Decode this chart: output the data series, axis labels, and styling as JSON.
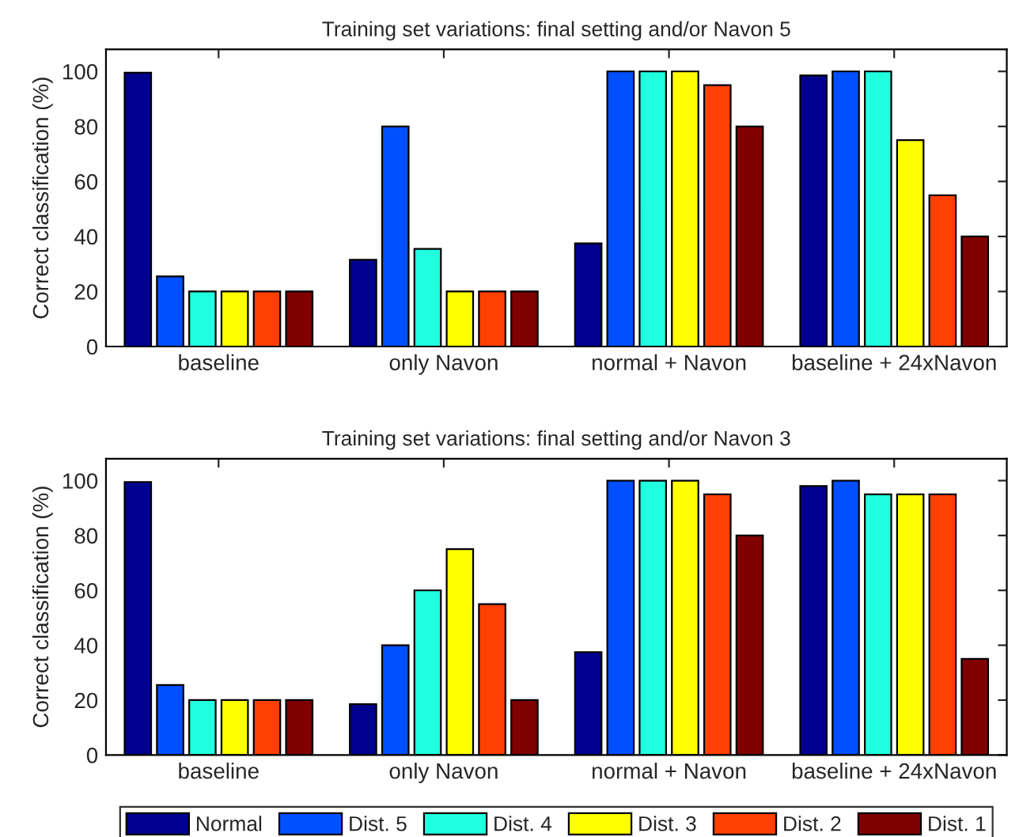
{
  "chart_data": [
    {
      "type": "bar",
      "title": "Training set variations: final setting and/or Navon 5",
      "ylabel": "Correct classification (%)",
      "categories": [
        "baseline",
        "only Navon",
        "normal + Navon",
        "baseline + 24xNavon"
      ],
      "ylim": [
        0,
        108
      ],
      "yticks": [
        0,
        20,
        40,
        60,
        80,
        100
      ],
      "grid": false,
      "series": [
        {
          "color": "#00008f",
          "values": [
            99.5,
            31.5,
            37.5,
            98.5
          ]
        },
        {
          "color": "#0050ff",
          "values": [
            25.5,
            80,
            100,
            100
          ]
        },
        {
          "color": "#20ffdf",
          "values": [
            20,
            35.5,
            100,
            100
          ]
        },
        {
          "color": "#ffff00",
          "values": [
            20,
            20,
            100,
            75
          ]
        },
        {
          "color": "#ff4000",
          "values": [
            20,
            20,
            95,
            55
          ]
        },
        {
          "color": "#800000",
          "values": [
            20,
            20,
            80,
            40
          ]
        }
      ]
    },
    {
      "type": "bar",
      "title": "Training set variations: final setting and/or Navon 3",
      "ylabel": "Correct classification (%)",
      "categories": [
        "baseline",
        "only Navon",
        "normal + Navon",
        "baseline + 24xNavon"
      ],
      "ylim": [
        0,
        108
      ],
      "yticks": [
        0,
        20,
        40,
        60,
        80,
        100
      ],
      "grid": false,
      "legend": "bottom",
      "series": [
        {
          "name": "Normal",
          "color": "#00008f",
          "values": [
            99.5,
            18.5,
            37.5,
            98
          ]
        },
        {
          "name": "Dist. 5",
          "color": "#0050ff",
          "values": [
            25.5,
            40,
            100,
            100
          ]
        },
        {
          "name": "Dist. 4",
          "color": "#20ffdf",
          "values": [
            20,
            60,
            100,
            95
          ]
        },
        {
          "name": "Dist. 3",
          "color": "#ffff00",
          "values": [
            20,
            75,
            100,
            95
          ]
        },
        {
          "name": "Dist. 2",
          "color": "#ff4000",
          "values": [
            20,
            55,
            95,
            95
          ]
        },
        {
          "name": "Dist. 1",
          "color": "#800000",
          "values": [
            20,
            20,
            80,
            35
          ]
        }
      ]
    }
  ]
}
